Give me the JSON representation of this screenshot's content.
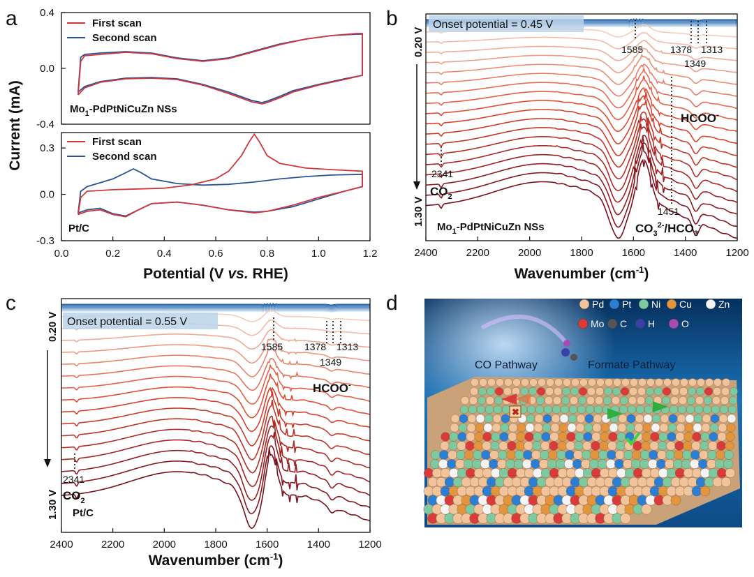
{
  "chart_data": [
    {
      "panel": "a",
      "type": "line",
      "subplots": [
        {
          "label": "Mo1-PdPtNiCuZn NSs",
          "ylim": [
            -0.4,
            0.4
          ],
          "yticks": [
            "0.4",
            "0.0",
            "-0.4"
          ],
          "series": [
            {
              "name": "First scan",
              "color": "#d0363c",
              "upper": [
                [
                  0.065,
                  -0.19
                ],
                [
                  0.075,
                  0.05
                ],
                [
                  0.09,
                  0.09
                ],
                [
                  0.15,
                  0.1
                ],
                [
                  0.25,
                  0.115
                ],
                [
                  0.35,
                  0.105
                ],
                [
                  0.45,
                  0.07
                ],
                [
                  0.55,
                  0.05
                ],
                [
                  0.65,
                  0.07
                ],
                [
                  0.75,
                  0.12
                ],
                [
                  0.85,
                  0.17
                ],
                [
                  0.95,
                  0.21
                ],
                [
                  1.05,
                  0.235
                ],
                [
                  1.15,
                  0.25
                ],
                [
                  1.17,
                  0.25
                ]
              ],
              "lower": [
                [
                  1.17,
                  0.25
                ],
                [
                  1.17,
                  -0.05
                ],
                [
                  1.1,
                  -0.08
                ],
                [
                  1.0,
                  -0.12
                ],
                [
                  0.9,
                  -0.17
                ],
                [
                  0.85,
                  -0.21
                ],
                [
                  0.8,
                  -0.245
                ],
                [
                  0.78,
                  -0.255
                ],
                [
                  0.74,
                  -0.24
                ],
                [
                  0.65,
                  -0.18
                ],
                [
                  0.55,
                  -0.12
                ],
                [
                  0.45,
                  -0.08
                ],
                [
                  0.35,
                  -0.07
                ],
                [
                  0.25,
                  -0.075
                ],
                [
                  0.15,
                  -0.1
                ],
                [
                  0.09,
                  -0.14
                ],
                [
                  0.065,
                  -0.19
                ]
              ]
            },
            {
              "name": "Second scan",
              "color": "#2b5394",
              "upper": [
                [
                  0.065,
                  -0.17
                ],
                [
                  0.075,
                  0.08
                ],
                [
                  0.09,
                  0.1
                ],
                [
                  0.15,
                  0.11
                ],
                [
                  0.25,
                  0.12
                ],
                [
                  0.35,
                  0.11
                ],
                [
                  0.45,
                  0.075
                ],
                [
                  0.55,
                  0.055
                ],
                [
                  0.65,
                  0.075
                ],
                [
                  0.75,
                  0.125
                ],
                [
                  0.85,
                  0.175
                ],
                [
                  0.95,
                  0.21
                ],
                [
                  1.05,
                  0.235
                ],
                [
                  1.15,
                  0.245
                ],
                [
                  1.17,
                  0.245
                ]
              ],
              "lower": [
                [
                  1.17,
                  0.245
                ],
                [
                  1.17,
                  -0.05
                ],
                [
                  1.1,
                  -0.075
                ],
                [
                  1.0,
                  -0.115
                ],
                [
                  0.9,
                  -0.16
                ],
                [
                  0.85,
                  -0.2
                ],
                [
                  0.8,
                  -0.235
                ],
                [
                  0.78,
                  -0.245
                ],
                [
                  0.74,
                  -0.23
                ],
                [
                  0.65,
                  -0.17
                ],
                [
                  0.55,
                  -0.115
                ],
                [
                  0.45,
                  -0.075
                ],
                [
                  0.35,
                  -0.065
                ],
                [
                  0.25,
                  -0.07
                ],
                [
                  0.15,
                  -0.095
                ],
                [
                  0.09,
                  -0.13
                ],
                [
                  0.065,
                  -0.17
                ]
              ]
            }
          ]
        },
        {
          "label": "Pt/C",
          "ylim": [
            -0.3,
            0.4
          ],
          "yticks": [
            "0.3",
            "0.0",
            "-0.3"
          ],
          "series": [
            {
              "name": "First scan",
              "color": "#d0363c",
              "upper": [
                [
                  0.065,
                  -0.13
                ],
                [
                  0.075,
                  -0.02
                ],
                [
                  0.1,
                  0.02
                ],
                [
                  0.2,
                  0.03
                ],
                [
                  0.3,
                  0.035
                ],
                [
                  0.4,
                  0.04
                ],
                [
                  0.5,
                  0.06
                ],
                [
                  0.6,
                  0.1
                ],
                [
                  0.65,
                  0.15
                ],
                [
                  0.7,
                  0.25
                ],
                [
                  0.73,
                  0.34
                ],
                [
                  0.75,
                  0.39
                ],
                [
                  0.77,
                  0.34
                ],
                [
                  0.8,
                  0.25
                ],
                [
                  0.85,
                  0.2
                ],
                [
                  0.95,
                  0.17
                ],
                [
                  1.05,
                  0.16
                ],
                [
                  1.17,
                  0.15
                ]
              ],
              "lower": [
                [
                  1.17,
                  0.15
                ],
                [
                  1.17,
                  0.05
                ],
                [
                  1.1,
                  0.02
                ],
                [
                  1.0,
                  -0.02
                ],
                [
                  0.9,
                  -0.07
                ],
                [
                  0.8,
                  -0.11
                ],
                [
                  0.75,
                  -0.12
                ],
                [
                  0.65,
                  -0.1
                ],
                [
                  0.55,
                  -0.07
                ],
                [
                  0.45,
                  -0.05
                ],
                [
                  0.35,
                  -0.06
                ],
                [
                  0.3,
                  -0.1
                ],
                [
                  0.25,
                  -0.145
                ],
                [
                  0.2,
                  -0.13
                ],
                [
                  0.15,
                  -0.1
                ],
                [
                  0.1,
                  -0.11
                ],
                [
                  0.065,
                  -0.13
                ]
              ]
            },
            {
              "name": "Second scan",
              "color": "#2b5394",
              "upper": [
                [
                  0.065,
                  -0.12
                ],
                [
                  0.075,
                  0.02
                ],
                [
                  0.1,
                  0.05
                ],
                [
                  0.2,
                  0.1
                ],
                [
                  0.25,
                  0.14
                ],
                [
                  0.28,
                  0.165
                ],
                [
                  0.31,
                  0.14
                ],
                [
                  0.35,
                  0.1
                ],
                [
                  0.45,
                  0.07
                ],
                [
                  0.55,
                  0.06
                ],
                [
                  0.65,
                  0.065
                ],
                [
                  0.75,
                  0.08
                ],
                [
                  0.85,
                  0.1
                ],
                [
                  0.95,
                  0.115
                ],
                [
                  1.05,
                  0.125
                ],
                [
                  1.17,
                  0.13
                ]
              ],
              "lower": [
                [
                  1.17,
                  0.13
                ],
                [
                  1.17,
                  0.05
                ],
                [
                  1.1,
                  0.02
                ],
                [
                  1.0,
                  -0.03
                ],
                [
                  0.9,
                  -0.08
                ],
                [
                  0.8,
                  -0.11
                ],
                [
                  0.75,
                  -0.115
                ],
                [
                  0.65,
                  -0.1
                ],
                [
                  0.55,
                  -0.07
                ],
                [
                  0.45,
                  -0.05
                ],
                [
                  0.35,
                  -0.06
                ],
                [
                  0.3,
                  -0.1
                ],
                [
                  0.25,
                  -0.14
                ],
                [
                  0.2,
                  -0.125
                ],
                [
                  0.15,
                  -0.09
                ],
                [
                  0.1,
                  -0.1
                ],
                [
                  0.065,
                  -0.12
                ]
              ]
            }
          ]
        }
      ],
      "xlabel": "Potential (V vs. RHE)",
      "ylabel": "Current (mA)",
      "xlim": [
        0.0,
        1.2
      ],
      "xticks": [
        "0.0",
        "0.2",
        "0.4",
        "0.6",
        "0.8",
        "1.0",
        "1.2"
      ],
      "legend": [
        "First scan",
        "Second scan"
      ]
    },
    {
      "panel": "b",
      "type": "line",
      "xlabel": "Wavenumber (cm-1)",
      "xlim": [
        2400,
        1200
      ],
      "xticks": [
        "2400",
        "2200",
        "2000",
        "1800",
        "1600",
        "1400",
        "1200"
      ],
      "onset": "Onset potential = 0.45 V",
      "potential_top": "0.20 V",
      "potential_bottom": "1.30 V",
      "peaks": [
        "1585",
        "1378",
        "1313",
        "1349",
        "2341",
        "1451"
      ],
      "labels": [
        "HCOO-",
        "CO2",
        "CO32-/HCO3-",
        "Mo1-PdPtNiCuZn NSs"
      ],
      "n_spectra": 28,
      "n_flat": 10
    },
    {
      "panel": "c",
      "type": "line",
      "xlabel": "Wavenumber (cm-1)",
      "xlim": [
        2400,
        1200
      ],
      "xticks": [
        "2400",
        "2200",
        "2000",
        "1800",
        "1600",
        "1400",
        "1200"
      ],
      "onset": "Onset potential = 0.55 V",
      "potential_top": "0.20 V",
      "potential_bottom": "1.30 V",
      "peaks": [
        "1585",
        "1378",
        "1313",
        "1349",
        "2341"
      ],
      "labels": [
        "HCOO-",
        "CO2",
        "Pt/C"
      ],
      "n_spectra": 26,
      "n_flat": 10
    }
  ],
  "panel_letters": {
    "a": "a",
    "b": "b",
    "c": "c",
    "d": "d"
  },
  "text": {
    "a_first": "First scan",
    "a_second": "Second scan",
    "a_sample_top": "Mo",
    "a_sample_top_sub": "1",
    "a_sample_top_rest": "-PdPtNiCuZn NSs",
    "a_sample_bot": "Pt/C",
    "a_ylabel": "Current (mA)",
    "a_xlabel_pre": "Potential (V ",
    "a_xlabel_it": "vs.",
    "a_xlabel_post": " RHE)",
    "wn_label": "Wavenumber (cm",
    "wn_sup": "-1",
    "wn_close": ")",
    "b_onset": "Onset potential = 0.45 V",
    "c_onset": "Onset potential = 0.55 V",
    "v_top": "0.20 V",
    "v_bot": "1.30 V",
    "p1585": "1585",
    "p1378": "1378",
    "p1313": "1313",
    "p1349": "1349",
    "p2341": "2341",
    "p1451": "1451",
    "hcoo": "HCOO",
    "hcoo_sup": "-",
    "co2": "CO",
    "co2_sub": "2",
    "co3": "CO",
    "co3_sub": "3",
    "co3_sup": "2-",
    "co3_rest": "/HCO",
    "co3_sub2": "3",
    "co3_sup2": "-",
    "b_sample": "Mo",
    "b_sample_sub": "1",
    "b_sample_rest": "-PdPtNiCuZn NSs",
    "c_sample": "Pt/C"
  },
  "illustration": {
    "legend": [
      {
        "name": "Pd",
        "color": "#f2c49b"
      },
      {
        "name": "Pt",
        "color": "#2a7fd4"
      },
      {
        "name": "Ni",
        "color": "#7fc9a0"
      },
      {
        "name": "Cu",
        "color": "#e3953d"
      },
      {
        "name": "Zn",
        "color": "#f4f4f4"
      },
      {
        "name": "Mo",
        "color": "#d93a3a"
      },
      {
        "name": "C",
        "color": "#555555"
      },
      {
        "name": "H",
        "color": "#3b3fa8"
      },
      {
        "name": "O",
        "color": "#a64bb3"
      }
    ],
    "pathway_left": "CO Pathway",
    "pathway_right": "Formate Pathway"
  }
}
